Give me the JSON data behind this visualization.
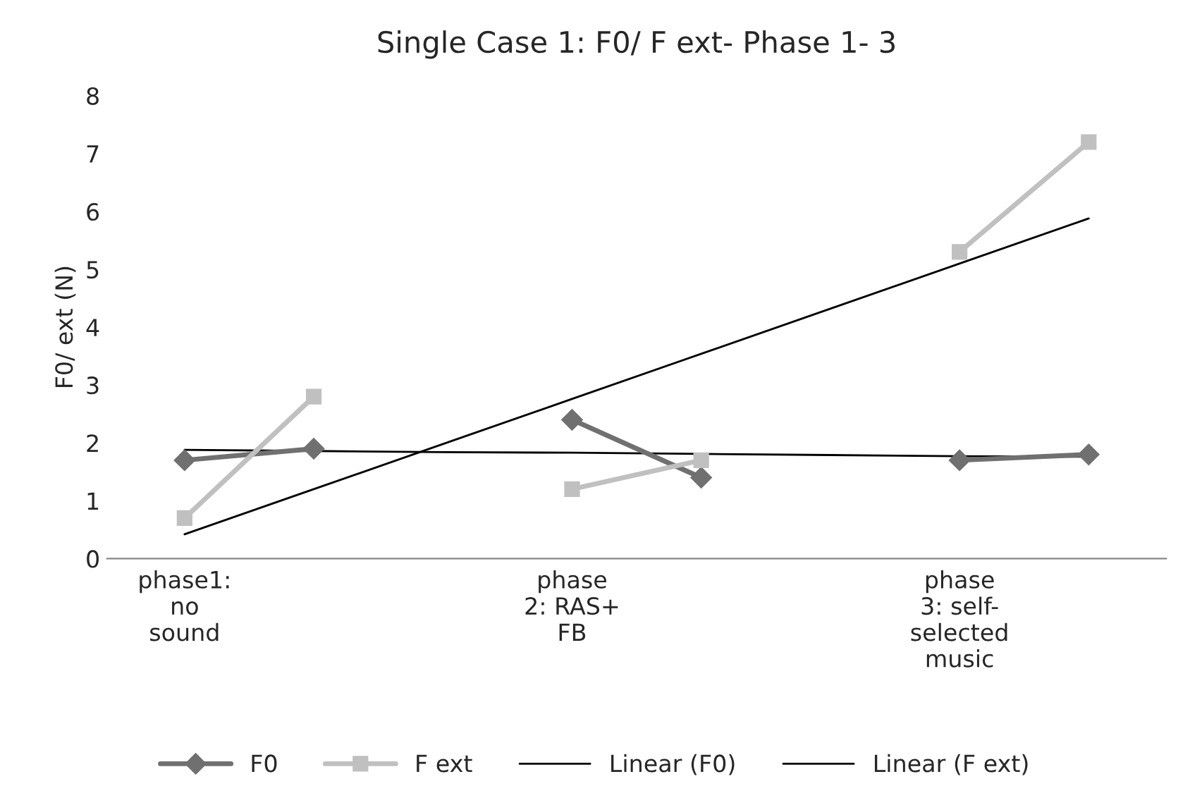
{
  "chart_data": {
    "type": "line",
    "title": "Single Case 1: F0/ F ext- Phase 1- 3",
    "ylabel": "F0/ ext (N)",
    "categories": [
      "phase1:\nno\nsound",
      null,
      null,
      "phase\n2: RAS+\nFB",
      null,
      null,
      "phase\n3: self-\nselected\nmusic",
      null
    ],
    "series": [
      {
        "name": "F0",
        "color": "#707070",
        "marker": "diamond",
        "values": [
          1.7,
          1.9,
          null,
          2.4,
          1.4,
          null,
          1.7,
          1.8
        ]
      },
      {
        "name": "F ext",
        "color": "#c0c0c0",
        "marker": "square",
        "values": [
          0.7,
          2.8,
          null,
          1.2,
          1.7,
          null,
          5.3,
          7.2
        ]
      },
      {
        "name": "Linear (F0)",
        "color": "#000000",
        "marker": "none",
        "values": [
          1.88,
          1.86,
          1.84,
          1.83,
          1.81,
          1.79,
          1.77,
          1.76
        ]
      },
      {
        "name": "Linear (F ext)",
        "color": "#000000",
        "marker": "none",
        "values": [
          0.42,
          1.2,
          1.98,
          2.76,
          3.54,
          4.32,
          5.1,
          5.88
        ]
      }
    ],
    "ylim": [
      0,
      8
    ],
    "yticks": [
      0,
      1,
      2,
      3,
      4,
      5,
      6,
      7,
      8
    ],
    "grid": false,
    "legend": "bottom"
  }
}
